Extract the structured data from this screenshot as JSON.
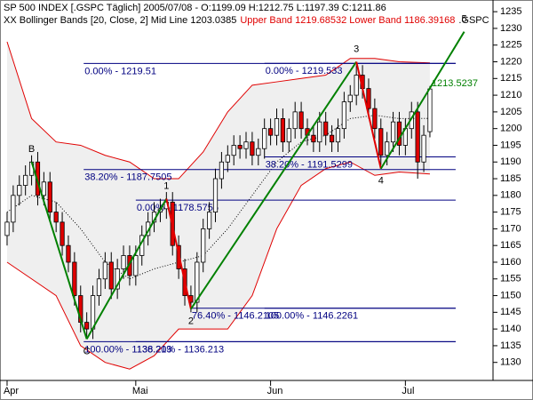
{
  "chart_data": {
    "type": "candlestick",
    "title": "SP 500 INDEX [.GSPC  Täglich] 2005/07/08 - O:1199.09 H:1212.75 L:1197.39 C:1211.86",
    "subtitle": "XX Bollinger Bands [20, Close, 2] Mid Line 1203.0385",
    "subtitle_red": "Upper Band 1219.68532 Lower Band 1186.39168",
    "symbol": ".GSPC",
    "x": [
      0,
      1,
      2,
      3,
      4,
      5,
      6,
      7,
      8,
      9,
      10,
      11,
      12,
      13,
      14,
      15,
      16,
      17,
      18,
      19,
      20,
      21,
      22,
      23,
      24,
      25,
      26,
      27,
      28,
      29,
      30,
      31,
      32,
      33,
      34,
      35,
      36,
      37,
      38,
      39,
      40,
      41,
      42,
      43,
      44,
      45,
      46,
      47,
      48,
      49,
      50,
      51,
      52,
      53,
      54,
      55,
      56,
      57,
      58,
      59,
      60,
      61,
      62,
      63,
      64,
      65,
      66,
      67,
      68,
      69
    ],
    "open": [
      1168,
      1172,
      1180,
      1183,
      1186,
      1190,
      1180,
      1184,
      1175,
      1172,
      1165,
      1160,
      1150,
      1142,
      1140,
      1150,
      1155,
      1160,
      1152,
      1158,
      1162,
      1156,
      1162,
      1168,
      1172,
      1175,
      1176,
      1178,
      1165,
      1158,
      1150,
      1148,
      1160,
      1170,
      1175,
      1185,
      1190,
      1192,
      1195,
      1194,
      1196,
      1192,
      1194,
      1200,
      1198,
      1203,
      1196,
      1200,
      1205,
      1200,
      1198,
      1196,
      1202,
      1198,
      1196,
      1200,
      1208,
      1210,
      1216,
      1212,
      1206,
      1200,
      1192,
      1196,
      1202,
      1195,
      1200,
      1205,
      1190,
      1199.09
    ],
    "high": [
      1175,
      1183,
      1186,
      1189,
      1192,
      1193,
      1187,
      1187,
      1178,
      1175,
      1168,
      1163,
      1153,
      1145,
      1153,
      1158,
      1163,
      1163,
      1161,
      1165,
      1165,
      1165,
      1171,
      1175,
      1178,
      1179,
      1181,
      1181,
      1168,
      1161,
      1153,
      1163,
      1173,
      1178,
      1188,
      1193,
      1195,
      1198,
      1198,
      1199,
      1199,
      1197,
      1203,
      1203,
      1206,
      1206,
      1203,
      1208,
      1208,
      1203,
      1201,
      1205,
      1205,
      1201,
      1203,
      1211,
      1213,
      1219,
      1219,
      1215,
      1209,
      1203,
      1199,
      1205,
      1205,
      1203,
      1208,
      1208,
      1201,
      1212.75
    ],
    "low": [
      1165,
      1169,
      1177,
      1180,
      1183,
      1177,
      1177,
      1172,
      1169,
      1162,
      1157,
      1147,
      1139,
      1137,
      1137,
      1147,
      1152,
      1149,
      1149,
      1155,
      1153,
      1153,
      1159,
      1165,
      1169,
      1172,
      1173,
      1162,
      1155,
      1147,
      1145,
      1145,
      1157,
      1167,
      1172,
      1182,
      1187,
      1189,
      1191,
      1191,
      1189,
      1189,
      1191,
      1195,
      1195,
      1193,
      1193,
      1197,
      1197,
      1195,
      1193,
      1193,
      1195,
      1193,
      1193,
      1197,
      1205,
      1207,
      1209,
      1203,
      1197,
      1189,
      1189,
      1193,
      1192,
      1192,
      1197,
      1185,
      1187,
      1197.39
    ],
    "close": [
      1172,
      1180,
      1183,
      1186,
      1190,
      1180,
      1184,
      1175,
      1172,
      1165,
      1160,
      1150,
      1142,
      1140,
      1150,
      1155,
      1160,
      1152,
      1158,
      1162,
      1156,
      1162,
      1168,
      1172,
      1175,
      1176,
      1178,
      1165,
      1158,
      1150,
      1148,
      1160,
      1170,
      1175,
      1185,
      1190,
      1192,
      1195,
      1194,
      1196,
      1192,
      1194,
      1200,
      1198,
      1203,
      1196,
      1200,
      1205,
      1200,
      1198,
      1196,
      1202,
      1198,
      1196,
      1200,
      1208,
      1210,
      1216,
      1212,
      1206,
      1200,
      1192,
      1196,
      1202,
      1195,
      1200,
      1205,
      1190,
      1198,
      1211.86
    ],
    "up_color": "#ffffff",
    "down_color": "#e00000",
    "bands": {
      "x": [
        0,
        4,
        8,
        12,
        16,
        20,
        24,
        28,
        32,
        36,
        40,
        44,
        48,
        52,
        56,
        60,
        64,
        69
      ],
      "upper": [
        1226,
        1203,
        1196,
        1195,
        1192,
        1190,
        1185,
        1185,
        1193,
        1205,
        1213,
        1214,
        1215,
        1216,
        1221,
        1221,
        1220,
        1219.68532
      ],
      "mid": [
        1175,
        1180,
        1178,
        1170,
        1160,
        1155,
        1158,
        1160,
        1162,
        1170,
        1180,
        1190,
        1196,
        1198,
        1203,
        1204,
        1203,
        1203.0385
      ],
      "lower": [
        1160,
        1155,
        1150,
        1135,
        1130,
        1128,
        1132,
        1140,
        1140,
        1140,
        1150,
        1170,
        1183,
        1188,
        1190,
        1186,
        1187,
        1186.39168
      ],
      "color": "#e00000",
      "fill": "#efefef"
    },
    "waves": {
      "labels": [
        "B",
        "C",
        "1",
        "2",
        "3",
        "4",
        "5"
      ],
      "x": [
        4,
        13,
        26,
        30,
        57,
        61,
        74.6
      ],
      "price": [
        1190,
        1137,
        1179,
        1146,
        1220,
        1188,
        1229
      ],
      "colors": [
        null,
        "#008000",
        "#008000",
        "#e00000",
        "#008000",
        "#e00000",
        "#008000"
      ]
    },
    "fib": [
      {
        "label": "0.00% - 1219.51",
        "value": 1219.51,
        "x_start": 12.5
      },
      {
        "label": "0.00% - 1219.533",
        "value": 1219.533,
        "x_start": 42
      },
      {
        "label": "38.20% - 1187.7505",
        "value": 1187.7505,
        "x_start": 12.5
      },
      {
        "label": "38.20% - 1191.5299",
        "value": 1191.5299,
        "x_start": 42
      },
      {
        "label": "0.00% - 1178.5755",
        "value": 1178.5755,
        "x_start": 21
      },
      {
        "label": "76.40% - 1146.2105",
        "value": 1146.2105,
        "x_start": 30
      },
      {
        "label": "100.00% - 1146.2261",
        "value": 1146.2261,
        "x_start": 42
      },
      {
        "label": "100.00% - 1136.213",
        "value": 1136.213,
        "x_start": 12.5
      },
      {
        "label": "138.20% - 1136.213",
        "value": 1136.213,
        "x_start": 21
      }
    ],
    "fib_end": 73.2,
    "fib_color": "#000080",
    "annotation": {
      "text": "1213.5237",
      "x": 69,
      "price": 1213.5237,
      "color": "#008000"
    },
    "xlim": [
      -0.2,
      79.3
    ],
    "ylim": [
      1124.6,
      1238.5
    ],
    "xticks": [
      {
        "value": 0,
        "label": "Apr"
      },
      {
        "value": 21,
        "label": "Mai"
      },
      {
        "value": 43,
        "label": "Jun"
      },
      {
        "value": 65,
        "label": "Jul"
      }
    ],
    "yticks": [
      1130,
      1135,
      1140,
      1145,
      1150,
      1155,
      1160,
      1165,
      1170,
      1175,
      1180,
      1185,
      1190,
      1195,
      1200,
      1205,
      1210,
      1215,
      1220,
      1225,
      1230,
      1235
    ]
  }
}
